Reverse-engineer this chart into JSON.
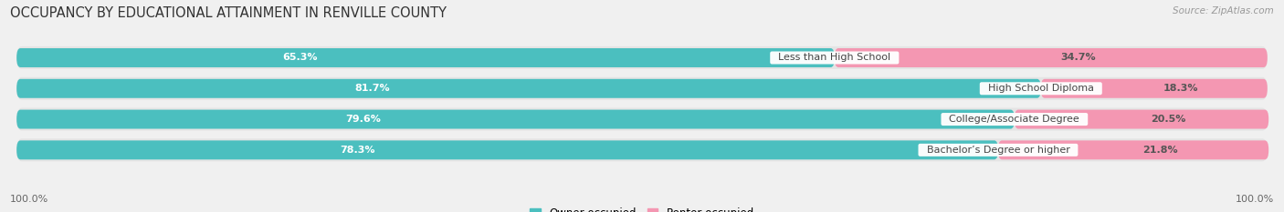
{
  "title": "OCCUPANCY BY EDUCATIONAL ATTAINMENT IN RENVILLE COUNTY",
  "source": "Source: ZipAtlas.com",
  "categories": [
    "Less than High School",
    "High School Diploma",
    "College/Associate Degree",
    "Bachelor’s Degree or higher"
  ],
  "owner_values": [
    65.3,
    81.7,
    79.6,
    78.3
  ],
  "renter_values": [
    34.7,
    18.3,
    20.5,
    21.8
  ],
  "owner_color": "#4BBFBF",
  "renter_color": "#F497B2",
  "background_color": "#f0f0f0",
  "row_bg_color": "#e4e4e4",
  "title_fontsize": 10.5,
  "source_fontsize": 7.5,
  "label_fontsize": 8,
  "value_fontsize": 8,
  "legend_fontsize": 8.5,
  "axis_label_fontsize": 8,
  "bar_height": 0.62,
  "left_axis_label": "100.0%",
  "right_axis_label": "100.0%"
}
